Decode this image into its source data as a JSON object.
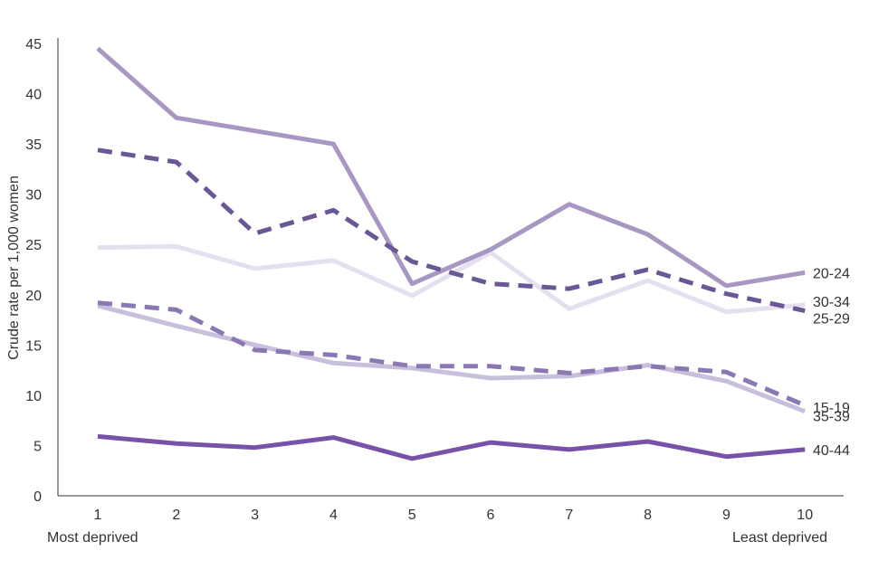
{
  "chart_data": {
    "type": "line",
    "title": "",
    "xlabel": "",
    "ylabel": "Crude rate per 1,000 women",
    "x": [
      "1",
      "2",
      "3",
      "4",
      "5",
      "6",
      "7",
      "8",
      "9",
      "10"
    ],
    "x_end_labels": {
      "left": "Most deprived",
      "right": "Least deprived"
    },
    "ylim": [
      0,
      45
    ],
    "yticks": [
      0,
      5,
      10,
      15,
      20,
      25,
      30,
      35,
      40,
      45
    ],
    "grid": false,
    "legend": "direct labels at line ends (right)",
    "series": [
      {
        "name": "20-24",
        "values": [
          44.5,
          37.6,
          36.3,
          35.0,
          21.1,
          24.5,
          29.0,
          26.0,
          20.9,
          22.2
        ],
        "color": "#a897c2",
        "dash": "solid"
      },
      {
        "name": "25-29",
        "values": [
          34.4,
          33.2,
          26.1,
          28.4,
          23.3,
          21.1,
          20.6,
          22.5,
          20.1,
          18.4
        ],
        "color": "#6a5796",
        "dash": "dashed"
      },
      {
        "name": "30-34",
        "values": [
          24.7,
          24.8,
          22.6,
          23.4,
          19.9,
          24.2,
          18.6,
          21.4,
          18.3,
          19.0
        ],
        "color": "#e5e0ef",
        "dash": "solid"
      },
      {
        "name": "15-19",
        "values": [
          19.2,
          18.5,
          14.5,
          14.0,
          12.9,
          12.9,
          12.2,
          12.9,
          12.3,
          9.0
        ],
        "color": "#8b78b3",
        "dash": "dashed"
      },
      {
        "name": "35-39",
        "values": [
          18.9,
          16.9,
          15.0,
          13.2,
          12.7,
          11.7,
          11.9,
          13.0,
          11.4,
          8.4
        ],
        "color": "#c8bfdc",
        "dash": "solid"
      },
      {
        "name": "40-44",
        "values": [
          5.9,
          5.2,
          4.8,
          5.8,
          3.7,
          5.3,
          4.6,
          5.4,
          3.9,
          4.6
        ],
        "color": "#7851a9",
        "dash": "solid"
      }
    ]
  }
}
